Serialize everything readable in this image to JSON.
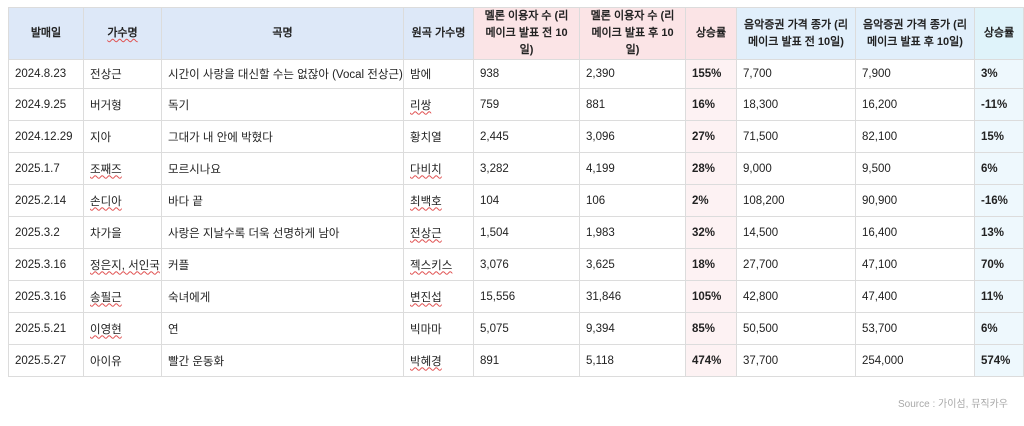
{
  "table": {
    "headers": [
      "발매일",
      "가수명",
      "곡명",
      "원곡 가수명",
      "멜론 이용자 수 (리메이크 발표 전 10일)",
      "멜론 이용자 수 (리메이크 발표 후 10일)",
      "상승률",
      "음악증권 가격 종가 (리메이크 발표 전 10일)",
      "음악증권 가격 종가 (리메이크 발표 후 10일)",
      "상승률"
    ],
    "rows": [
      [
        "2024.8.23",
        "전상근",
        "시간이 사랑을 대신할 수는 없잖아 (Vocal 전상근)",
        "밤에",
        "938",
        "2,390",
        "155%",
        "7,700",
        "7,900",
        "3%"
      ],
      [
        "2024.9.25",
        "버거형",
        "독기",
        "리쌍",
        "759",
        "881",
        "16%",
        "18,300",
        "16,200",
        "-11%"
      ],
      [
        "2024.12.29",
        "지아",
        "그대가 내 안에 박혔다",
        "황치열",
        "2,445",
        "3,096",
        "27%",
        "71,500",
        "82,100",
        "15%"
      ],
      [
        "2025.1.7",
        "조째즈",
        "모르시나요",
        "다비치",
        "3,282",
        "4,199",
        "28%",
        "9,000",
        "9,500",
        "6%"
      ],
      [
        "2025.2.14",
        "손디아",
        "바다 끝",
        "최백호",
        "104",
        "106",
        "2%",
        "108,200",
        "90,900",
        "-16%"
      ],
      [
        "2025.3.2",
        "차가을",
        "사랑은 지날수록 더욱 선명하게 남아",
        "전상근",
        "1,504",
        "1,983",
        "32%",
        "14,500",
        "16,400",
        "13%"
      ],
      [
        "2025.3.16",
        "정은지, 서인국",
        "커플",
        "젝스키스",
        "3,076",
        "3,625",
        "18%",
        "27,700",
        "47,100",
        "70%"
      ],
      [
        "2025.3.16",
        "송필근",
        "숙녀에게",
        "변진섭",
        "15,556",
        "31,846",
        "105%",
        "42,800",
        "47,400",
        "11%"
      ],
      [
        "2025.5.21",
        "이영현",
        "연",
        "빅마마",
        "5,075",
        "9,394",
        "85%",
        "50,500",
        "53,700",
        "6%"
      ],
      [
        "2025.5.27",
        "아이유",
        "빨간 운동화",
        "박혜경",
        "891",
        "5,118",
        "474%",
        "37,700",
        "254,000",
        "574%"
      ]
    ]
  },
  "source": "Source : 가이섬, 뮤직카우"
}
